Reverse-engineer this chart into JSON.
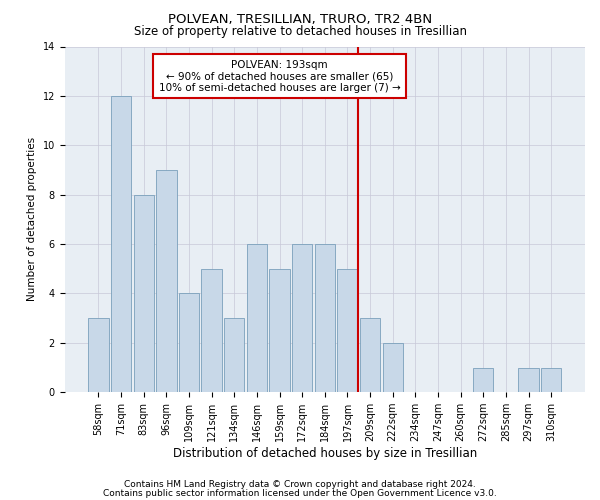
{
  "title": "POLVEAN, TRESILLIAN, TRURO, TR2 4BN",
  "subtitle": "Size of property relative to detached houses in Tresillian",
  "xlabel": "Distribution of detached houses by size in Tresillian",
  "ylabel": "Number of detached properties",
  "bar_color": "#c8d8e8",
  "bar_edge_color": "#7aa0bb",
  "categories": [
    "58sqm",
    "71sqm",
    "83sqm",
    "96sqm",
    "109sqm",
    "121sqm",
    "134sqm",
    "146sqm",
    "159sqm",
    "172sqm",
    "184sqm",
    "197sqm",
    "209sqm",
    "222sqm",
    "234sqm",
    "247sqm",
    "260sqm",
    "272sqm",
    "285sqm",
    "297sqm",
    "310sqm"
  ],
  "values": [
    3,
    12,
    8,
    9,
    4,
    5,
    3,
    6,
    5,
    6,
    6,
    5,
    3,
    2,
    0,
    0,
    0,
    1,
    0,
    1,
    1
  ],
  "ylim": [
    0,
    14
  ],
  "yticks": [
    0,
    2,
    4,
    6,
    8,
    10,
    12,
    14
  ],
  "vline_color": "#cc0000",
  "annotation_line1": "POLVEAN: 193sqm",
  "annotation_line2": "← 90% of detached houses are smaller (65)",
  "annotation_line3": "10% of semi-detached houses are larger (7) →",
  "annotation_box_color": "#cc0000",
  "footer_line1": "Contains HM Land Registry data © Crown copyright and database right 2024.",
  "footer_line2": "Contains public sector information licensed under the Open Government Licence v3.0.",
  "bg_color": "#e8eef4",
  "grid_color": "#c8c8d8",
  "title_fontsize": 9.5,
  "subtitle_fontsize": 8.5,
  "xlabel_fontsize": 8.5,
  "ylabel_fontsize": 7.5,
  "tick_fontsize": 7,
  "annotation_fontsize": 7.5,
  "footer_fontsize": 6.5
}
